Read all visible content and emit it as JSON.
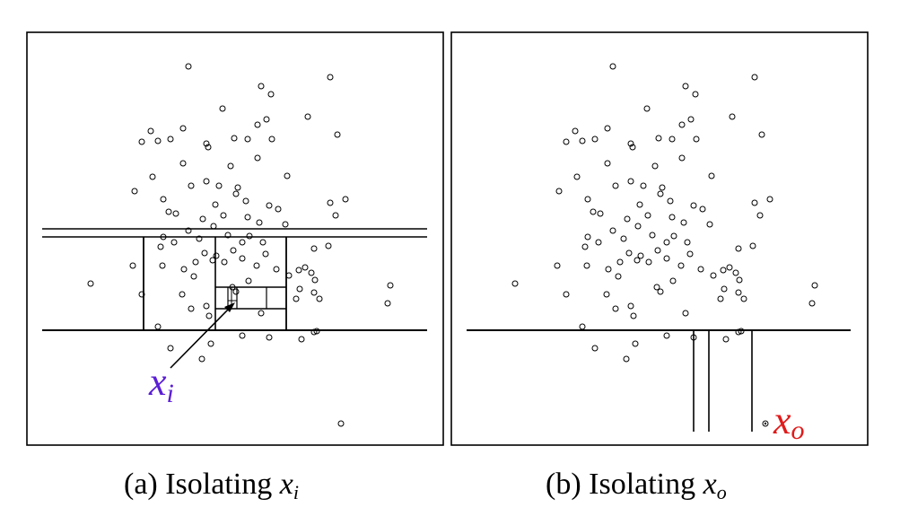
{
  "panels": [
    {
      "id": "a",
      "caption_prefix": "(a) Isolating ",
      "caption_var": "x",
      "caption_sub": "i",
      "label_var": "x",
      "label_sub": "i",
      "label_color": "#5b1fd6",
      "point_color": "#000000",
      "line_color": "#000000"
    },
    {
      "id": "b",
      "caption_prefix": "(b) Isolating ",
      "caption_var": "x",
      "caption_sub": "o",
      "label_var": "x",
      "label_sub": "o",
      "label_color": "#e01b1b",
      "point_color": "#000000",
      "line_color": "#000000"
    }
  ]
}
